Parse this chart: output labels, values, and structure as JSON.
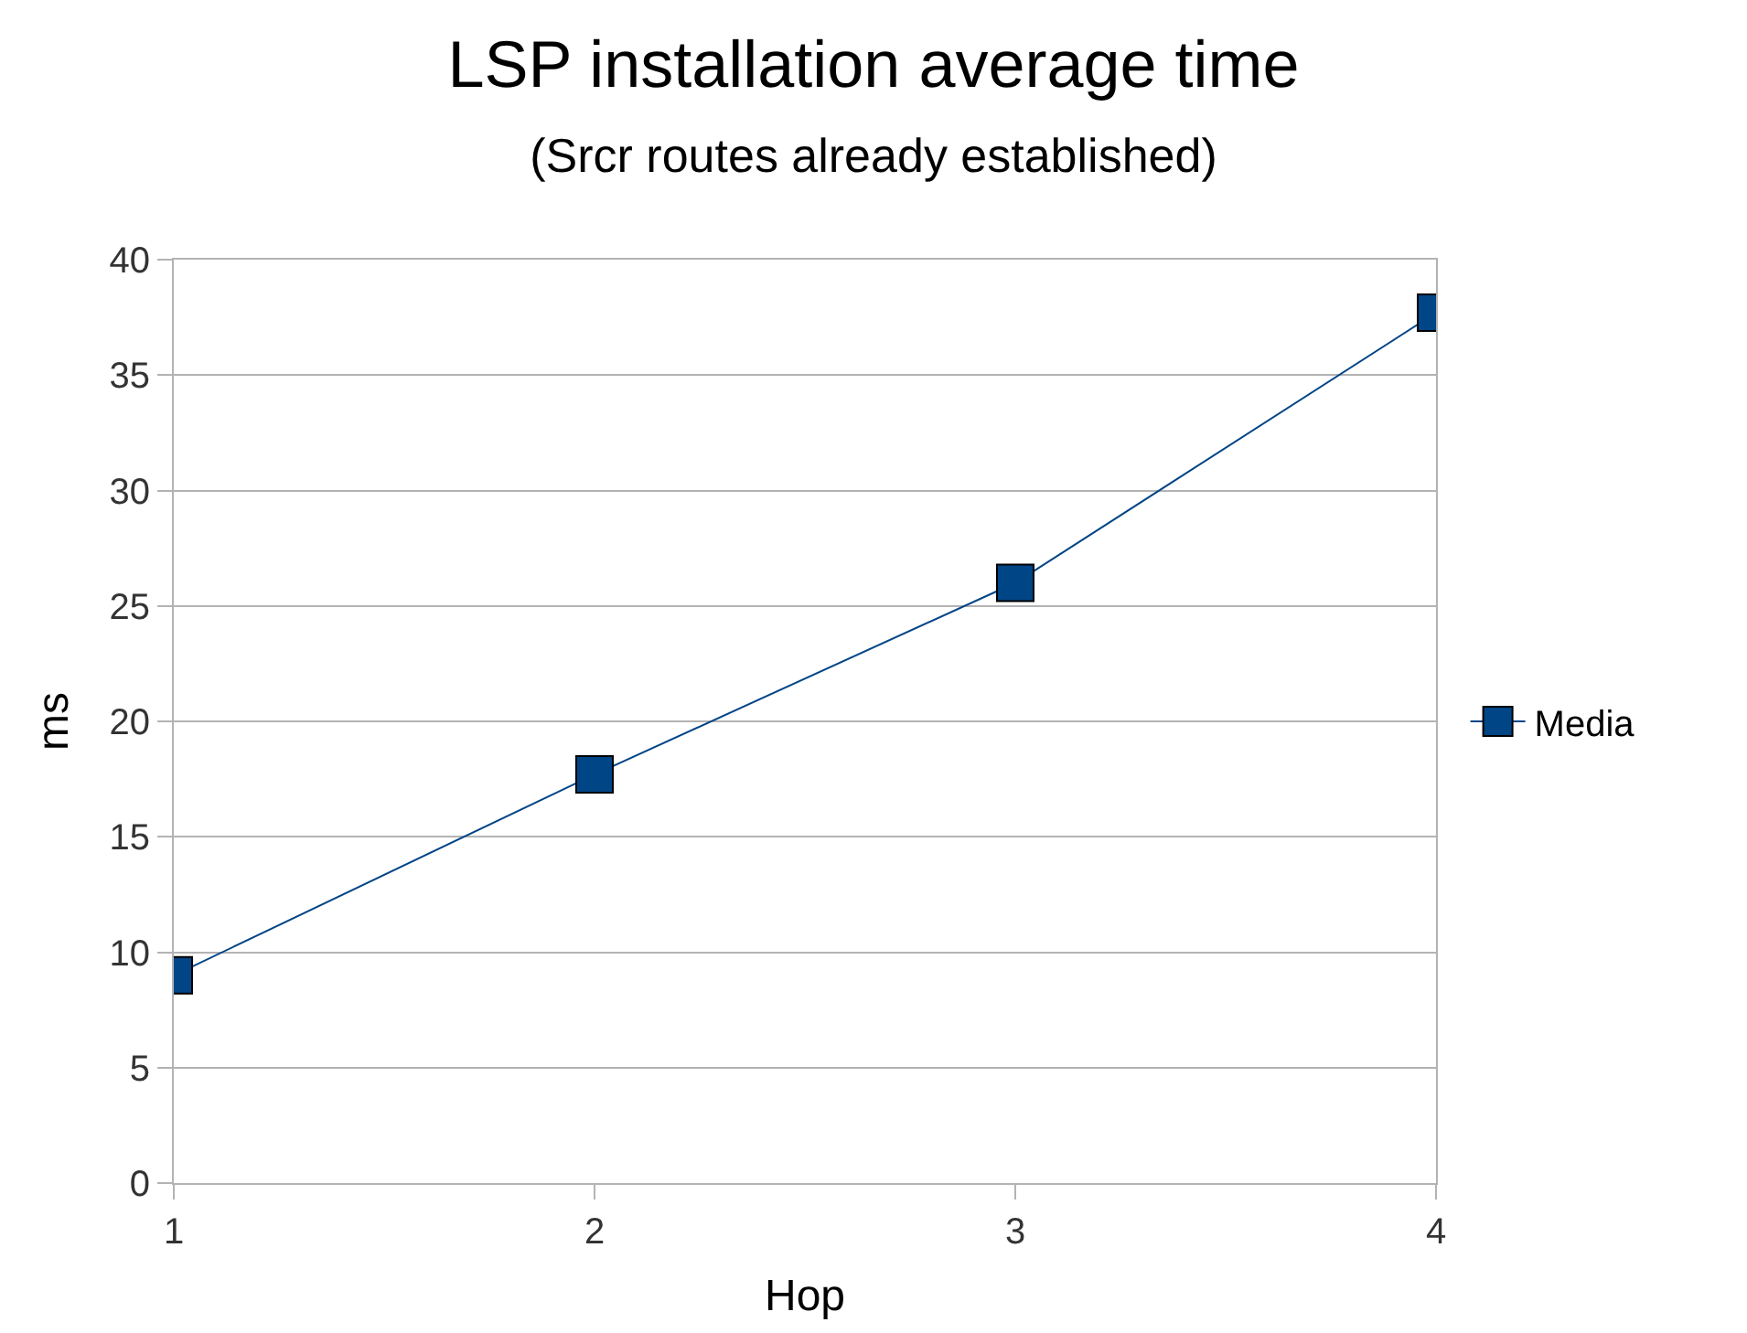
{
  "chart_data": {
    "type": "line",
    "title": "LSP installation average time",
    "subtitle": "(Srcr routes already established)",
    "xlabel": "Hop",
    "ylabel": "ms",
    "x": [
      1,
      2,
      3,
      4
    ],
    "series": [
      {
        "name": "Media",
        "color": "#004586",
        "values": [
          9,
          17.7,
          26,
          37.7
        ]
      }
    ],
    "xlim": [
      1,
      4
    ],
    "xticks": [
      1,
      2,
      3,
      4
    ],
    "ylim": [
      0,
      40
    ],
    "yticks": [
      0,
      5,
      10,
      15,
      20,
      25,
      30,
      35,
      40
    ],
    "grid": "y",
    "legend": "right",
    "marker": "square",
    "line_style": "solid"
  }
}
